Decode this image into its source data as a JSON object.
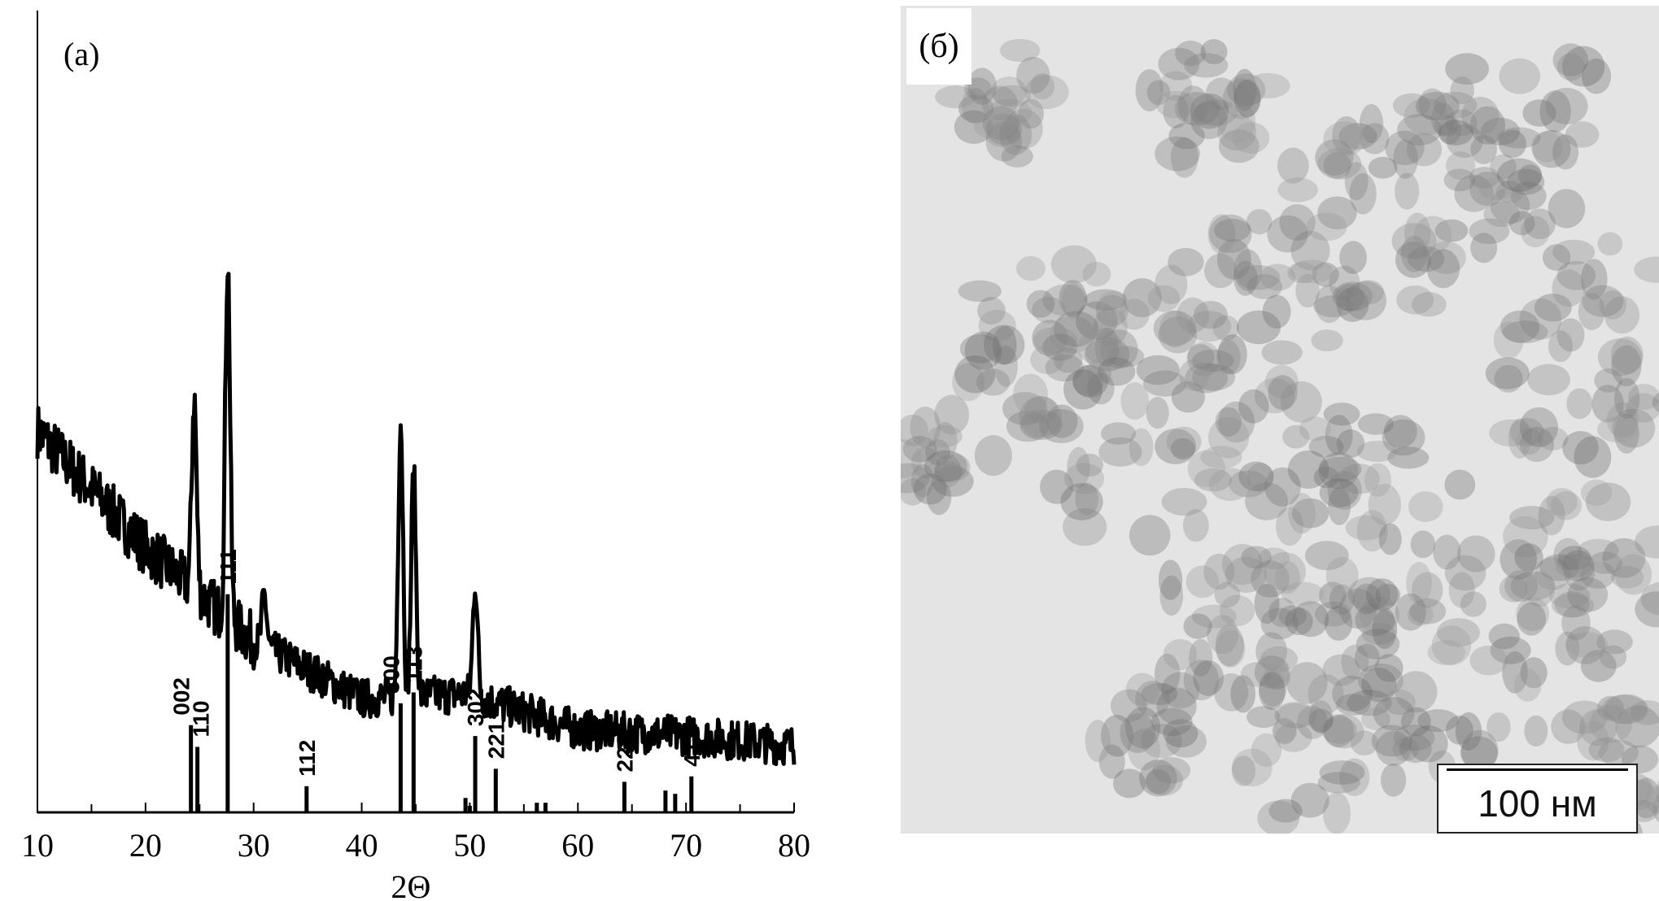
{
  "chart_data": [
    {
      "type": "line",
      "panel_label": "(a)",
      "xlabel": "2Θ",
      "ylabel": "",
      "xlim": [
        10,
        80
      ],
      "xticks": [
        10,
        20,
        30,
        40,
        50,
        60,
        70,
        80
      ],
      "grid": false,
      "legend": "none",
      "measured_pattern": {
        "style": "noisy black line",
        "background": [
          [
            10,
            47.6
          ],
          [
            20,
            33
          ],
          [
            30,
            21.4
          ],
          [
            40,
            14.2
          ],
          [
            50,
            14.8
          ],
          [
            60,
            10.3
          ],
          [
            70,
            9.6
          ],
          [
            80,
            8.3
          ]
        ],
        "peaks": [
          [
            24.5,
            51.9
          ],
          [
            27.6,
            68.9
          ],
          [
            31.0,
            27.0
          ],
          [
            43.6,
            49.0
          ],
          [
            44.8,
            42.5
          ],
          [
            50.5,
            28.8
          ]
        ]
      },
      "reference_sticks": [
        {
          "x": 24.2,
          "intensity": 40,
          "label": "002"
        },
        {
          "x": 24.8,
          "intensity": 30,
          "label": "110"
        },
        {
          "x": 27.6,
          "intensity": 100,
          "label": "111"
        },
        {
          "x": 34.9,
          "intensity": 12,
          "label": "112"
        },
        {
          "x": 43.6,
          "intensity": 50,
          "label": "300"
        },
        {
          "x": 44.8,
          "intensity": 55,
          "label": "113"
        },
        {
          "x": 49.6,
          "intensity": 6.6,
          "label": ""
        },
        {
          "x": 50.0,
          "intensity": 3,
          "label": ""
        },
        {
          "x": 50.5,
          "intensity": 35,
          "label": "302"
        },
        {
          "x": 52.4,
          "intensity": 20,
          "label": "221"
        },
        {
          "x": 56.2,
          "intensity": 4.4,
          "label": ""
        },
        {
          "x": 57.0,
          "intensity": 4.4,
          "label": ""
        },
        {
          "x": 64.3,
          "intensity": 14,
          "label": "223"
        },
        {
          "x": 68.1,
          "intensity": 10,
          "label": ""
        },
        {
          "x": 69.0,
          "intensity": 8.5,
          "label": ""
        },
        {
          "x": 70.5,
          "intensity": 16.5,
          "label": "411"
        }
      ]
    }
  ],
  "micrograph": {
    "panel_label": "(б)",
    "scale_bar_label": "100 нм"
  },
  "colors": {
    "line": "#000000",
    "tem_background": "#e4e4e4",
    "particles": "#6e6e6e"
  }
}
